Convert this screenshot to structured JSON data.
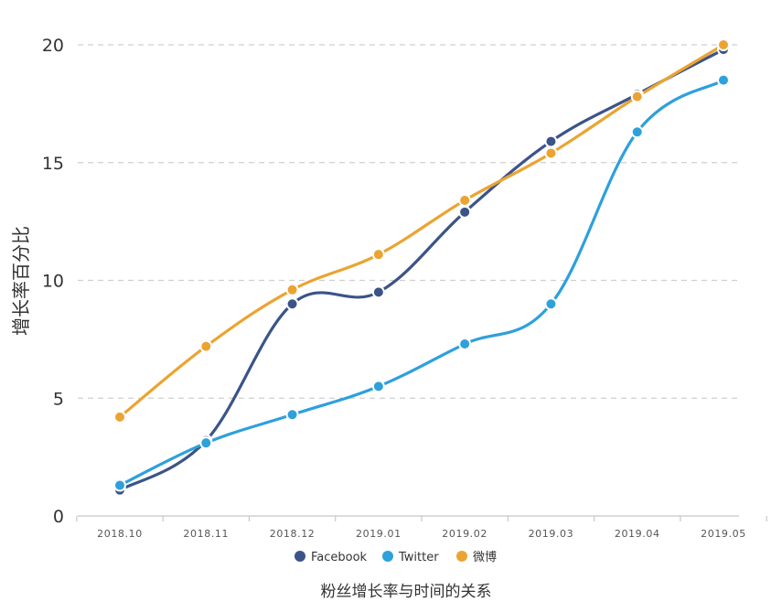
{
  "chart_data": {
    "type": "line",
    "categories": [
      "2018.10",
      "2018.11",
      "2018.12",
      "2019.01",
      "2019.02",
      "2019.03",
      "2019.04",
      "2019.05"
    ],
    "series": [
      {
        "name": "Facebook",
        "color": "#3b5488",
        "values": [
          1.1,
          3.2,
          9.0,
          9.5,
          12.9,
          15.9,
          17.9,
          19.8
        ]
      },
      {
        "name": "Twitter",
        "color": "#2ea0dc",
        "values": [
          1.3,
          3.1,
          4.3,
          5.5,
          7.3,
          9.0,
          16.3,
          18.5
        ]
      },
      {
        "name": "微博",
        "color": "#eba431",
        "values": [
          4.2,
          7.2,
          9.6,
          11.1,
          13.4,
          15.4,
          17.8,
          20.0
        ]
      }
    ],
    "ylabel": "增长率百分比",
    "xlabel": "",
    "caption": "粉丝增长率与时间的关系",
    "ylim": [
      0,
      20
    ],
    "yticks": [
      0,
      5,
      10,
      15,
      20
    ],
    "grid": true,
    "legend_position": "bottom-center"
  }
}
